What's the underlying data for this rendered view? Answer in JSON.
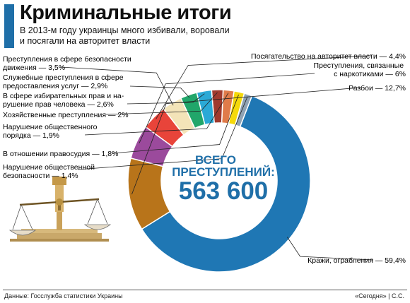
{
  "header": {
    "title": "Криминальные итоги",
    "subtitle": "В 2013-м году украинцы много избивали, воровали и посягали на авторитет власти"
  },
  "center": {
    "line1": "ВСЕГО",
    "line2": "ПРЕСТУПЛЕНИЙ:",
    "total": "563 600"
  },
  "footer": {
    "source": "Данные: Госслужба статистики Украины",
    "credit": "«Сегодня» | С.С."
  },
  "chart_data": {
    "type": "pie",
    "style": "donut",
    "total": 563600,
    "slices": [
      {
        "label": "Кражи, ограбления — 59,4%",
        "value": 59.4,
        "color": "#1f77b4"
      },
      {
        "label": "Нарушение общественной безопасности — 1,4%",
        "value": 1.4,
        "color": "#8fa3b5"
      },
      {
        "label": "В отношении правосудия — 1,8%",
        "value": 1.8,
        "color": "#f5d90a"
      },
      {
        "label": "Нарушение общественного порядка — 1,9%",
        "value": 1.9,
        "color": "#e07b4a"
      },
      {
        "label": "Хозяйственные преступления — 2%",
        "value": 2.0,
        "color": "#a03a2e"
      },
      {
        "label": "В сфере избирательных прав и нарушение прав человека — 2,6%",
        "value": 2.6,
        "color": "#2aa9d6"
      },
      {
        "label": "Служебные преступления в сфере предоставления услуг — 2,9%",
        "value": 2.9,
        "color": "#21a66a"
      },
      {
        "label": "Преступления в сфере безопасности движения — 3,5%",
        "value": 3.5,
        "color": "#f3e4b8"
      },
      {
        "label": "Посягательство на авторитет власти — 4,4%",
        "value": 4.4,
        "color": "#e8443a"
      },
      {
        "label": "Преступления, связанные с наркотиками — 6%",
        "value": 6.0,
        "color": "#9b4a9c"
      },
      {
        "label": "Разбои — 12,7%",
        "value": 12.7,
        "color": "#b8741a"
      }
    ]
  }
}
